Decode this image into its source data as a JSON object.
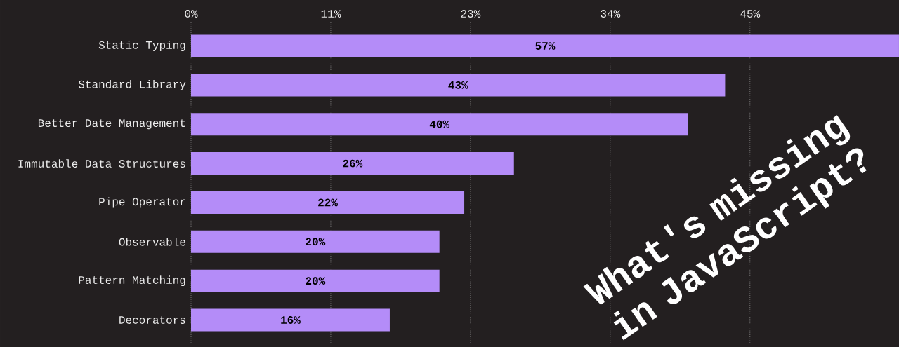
{
  "chart_data": {
    "type": "bar",
    "orientation": "horizontal",
    "title": "What's missing in JavaScript?",
    "categories": [
      "Static Typing",
      "Standard Library",
      "Better Date Management",
      "Immutable Data Structures",
      "Pipe Operator",
      "Observable",
      "Pattern Matching",
      "Decorators"
    ],
    "values": [
      57,
      43,
      40,
      26,
      22,
      20,
      20,
      16
    ],
    "value_labels": [
      "57%",
      "43%",
      "40%",
      "26%",
      "22%",
      "20%",
      "20%",
      "16%"
    ],
    "color": "#b48cf8",
    "xlim": [
      0,
      57
    ],
    "xticks": [
      {
        "value": 0,
        "label": "0%"
      },
      {
        "value": 11.25,
        "label": "11%"
      },
      {
        "value": 22.5,
        "label": "23%"
      },
      {
        "value": 33.75,
        "label": "34%"
      },
      {
        "value": 45,
        "label": "45%"
      }
    ],
    "grid": "x"
  }
}
